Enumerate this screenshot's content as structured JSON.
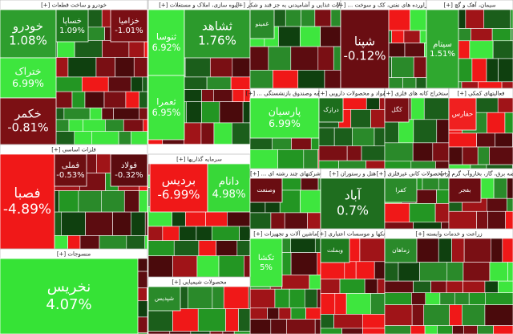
{
  "sectors": [
    {
      "title": "خودرو و ساخت قطعات [+]",
      "tiles": [
        {
          "name": "خودرو",
          "change": "1.08%",
          "color": "#2e9e2e"
        },
        {
          "name": "خساپا",
          "change": "1.09%",
          "color": "#1f7a1f"
        },
        {
          "name": "خزامیا",
          "change": "-1.01%",
          "color": "#7a0f14"
        },
        {
          "name": "ختراک",
          "change": "6.99%",
          "color": "#3ee63e"
        },
        {
          "name": "خکمر",
          "change": "-0.81%",
          "color": "#7c1014"
        }
      ]
    },
    {
      "title": "فلزات اساسی [+]",
      "tiles": [
        {
          "name": "فصبا",
          "change": "-4.89%",
          "color": "#f01818"
        },
        {
          "name": "فملی",
          "change": "-0.53%",
          "color": "#6e0f12"
        },
        {
          "name": "فولاد",
          "change": "-0.32%",
          "color": "#5c0c10"
        }
      ]
    },
    {
      "title": "منسوجات [+]",
      "tiles": [
        {
          "name": "نخریس",
          "change": "4.07%",
          "color": "#36e336"
        }
      ]
    },
    {
      "title": "انبوه سازی، املاک و مستغلات [+]",
      "tiles": [
        {
          "name": "ثنوسا",
          "change": "6.92%",
          "color": "#3ee63e"
        },
        {
          "name": "ثشاهد",
          "change": "1.76%",
          "color": "#2c9a2c"
        },
        {
          "name": "ثعمرا",
          "change": "6.95%",
          "color": "#3ee63e"
        }
      ]
    },
    {
      "title": "سرمایه گذاریها [+]",
      "tiles": [
        {
          "name": "بردیس",
          "change": "-6.99%",
          "color": "#f01818"
        },
        {
          "name": "دانام",
          "change": "4.98%",
          "color": "#38d838"
        }
      ]
    },
    {
      "title": "محصولات غذایی و آشامیدنی به جز قند و شکر [+]",
      "tiles": [
        {
          "name": "غمینو",
          "change": "",
          "color": "#2a8a2a"
        }
      ]
    },
    {
      "title": "فراورده های نفتی، کک و سوخت ... [+]",
      "tiles": [
        {
          "name": "شپنا",
          "change": "-0.12%",
          "color": "#6a0d12"
        }
      ]
    },
    {
      "title": "سیمان، آهک و گچ [+]",
      "tiles": [
        {
          "name": "سیتام",
          "change": "1.51%",
          "color": "#2fa82f"
        }
      ]
    },
    {
      "title": "بیمه وصندوق بازنشستگی ... [+]",
      "tiles": [
        {
          "name": "پارسیان",
          "change": "6.99%",
          "color": "#3ee63e"
        }
      ]
    },
    {
      "title": "مواد و محصولات دارویی [+]",
      "tiles": [
        {
          "name": "درازک",
          "change": "",
          "color": "#1d6e1d"
        }
      ]
    },
    {
      "title": "شرکتهای چند رشته ای ... [+]",
      "tiles": [
        {
          "name": "وصنعت",
          "change": "",
          "color": "#6a0d12"
        }
      ]
    },
    {
      "title": "هتل و رستوران [+]",
      "tiles": [
        {
          "name": "آباد",
          "change": "0.7%",
          "color": "#1f6e1f"
        }
      ]
    },
    {
      "title": "ماشین آلات و تجهیزات [+]",
      "tiles": [
        {
          "name": "تکشا",
          "change": "5%",
          "color": "#3ee63e"
        }
      ]
    },
    {
      "title": "محصولات شیمیایی [+]",
      "tiles": [
        {
          "name": "شپدیس",
          "change": "",
          "color": "#2a8a2a"
        }
      ]
    },
    {
      "title": "استخراج کانه های فلزی [+]",
      "tiles": [
        {
          "name": "کگل",
          "change": "",
          "color": "#7a0f14"
        }
      ]
    },
    {
      "title": "فعالیتهای کمکی [+]",
      "tiles": [
        {
          "name": "حفارس",
          "change": "",
          "color": "#f02020"
        }
      ]
    },
    {
      "title": "سایر محصولات کانی غیرفلزی [+]",
      "tiles": [
        {
          "name": "کفرا",
          "change": "",
          "color": "#2a8a2a"
        }
      ]
    },
    {
      "title": "عرضه برق، گاز، بخاروآب گرم [+]",
      "tiles": [
        {
          "name": "بفجر",
          "change": "",
          "color": "#6a0d12"
        }
      ]
    },
    {
      "title": "بانکها و موسسات اعتباری [+]",
      "tiles": [
        {
          "name": "وبملت",
          "change": "",
          "color": "#1f7a1f"
        }
      ]
    },
    {
      "title": "زراعت و خدمات وابسته [+]",
      "tiles": [
        {
          "name": "زماهان",
          "change": "",
          "color": "#2a8a2a"
        }
      ]
    }
  ]
}
